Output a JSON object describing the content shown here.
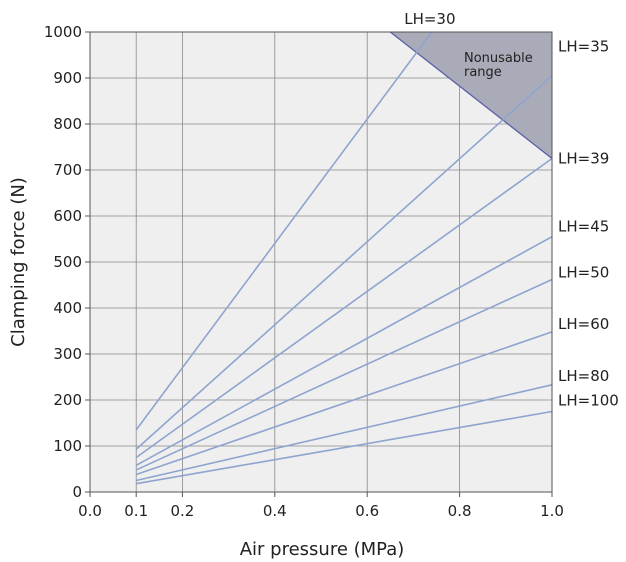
{
  "chart_data": {
    "type": "line",
    "xlabel": "Air pressure (MPa)",
    "ylabel": "Clamping force (N)",
    "xlim": [
      0.0,
      1.0
    ],
    "ylim": [
      0,
      1000
    ],
    "x_ticks": [
      "0.0",
      "0.1",
      "0.2",
      "0.4",
      "0.6",
      "0.8",
      "1.0"
    ],
    "y_ticks": [
      "0",
      "100",
      "200",
      "300",
      "400",
      "500",
      "600",
      "700",
      "800",
      "900",
      "1000"
    ],
    "grid": true,
    "line_color": "#8ea4cf",
    "background_color": "#efefef",
    "region_color": "#a9abb8",
    "region_label": "Nonusable range",
    "region": [
      [
        0.65,
        1000
      ],
      [
        1.0,
        1000
      ],
      [
        1.0,
        725
      ]
    ],
    "series": [
      {
        "name": "LH=30",
        "x": [
          0.1,
          0.74
        ],
        "y": [
          135,
          1000
        ]
      },
      {
        "name": "LH=35",
        "x": [
          0.1,
          1.0
        ],
        "y": [
          93,
          905
        ]
      },
      {
        "name": "LH=39",
        "x": [
          0.1,
          1.0
        ],
        "y": [
          75,
          725
        ]
      },
      {
        "name": "LH=45",
        "x": [
          0.1,
          1.0
        ],
        "y": [
          58,
          555
        ]
      },
      {
        "name": "LH=50",
        "x": [
          0.1,
          1.0
        ],
        "y": [
          48,
          462
        ]
      },
      {
        "name": "LH=60",
        "x": [
          0.1,
          1.0
        ],
        "y": [
          38,
          348
        ]
      },
      {
        "name": "LH=80",
        "x": [
          0.1,
          1.0
        ],
        "y": [
          25,
          233
        ]
      },
      {
        "name": "LH=100",
        "x": [
          0.1,
          1.0
        ],
        "y": [
          18,
          175
        ]
      }
    ]
  }
}
